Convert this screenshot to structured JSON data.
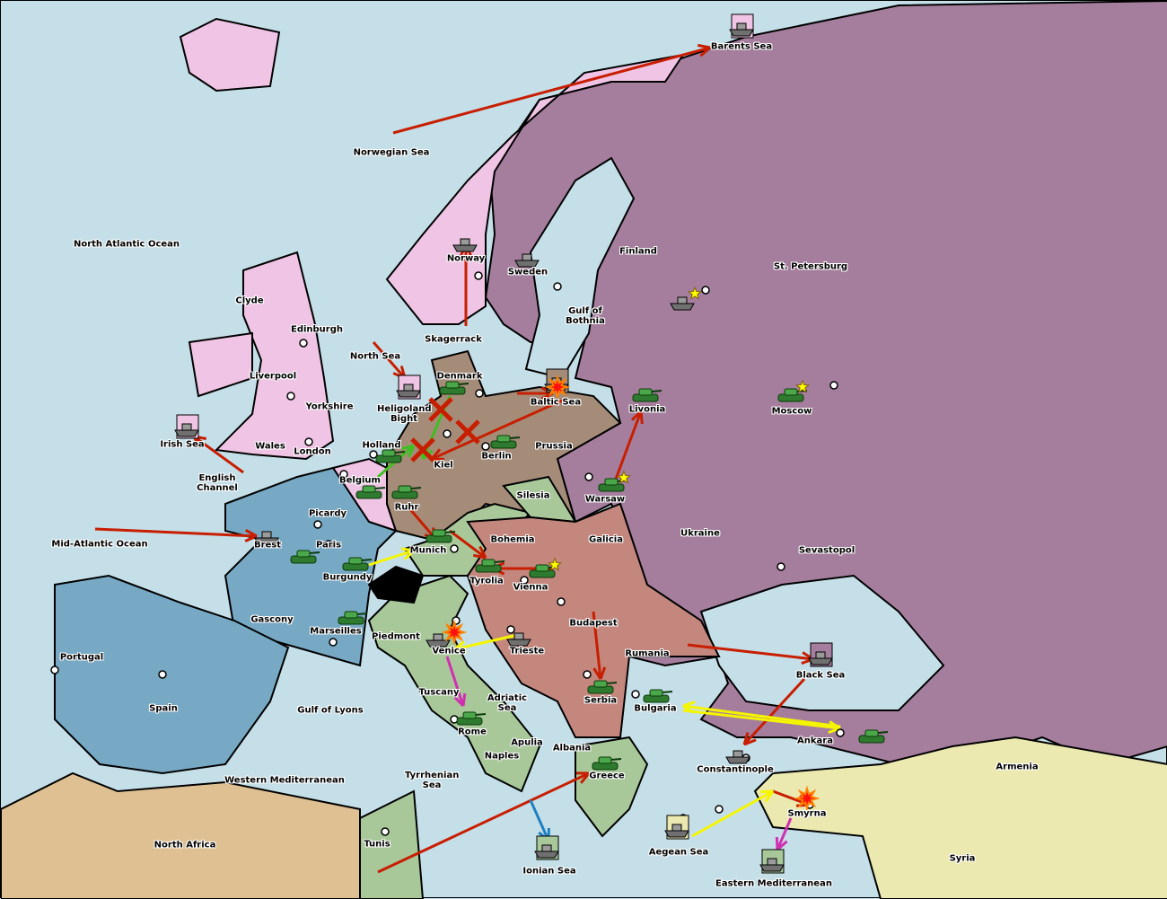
{
  "colors": {
    "sea": "#c5dfe9",
    "russia": "#a57e9e",
    "england": "#f0c4e4",
    "france": "#78a9c4",
    "germany": "#a58c78",
    "austria": "#c4877e",
    "italy": "#a8c89a",
    "turkey": "#ebe9b0",
    "neutral": "#dec092",
    "impassable": "#000000",
    "move_order": "#c81e00",
    "support_order": "#f5f500",
    "convoy_order": "#d030b0",
    "hold_order": "#2080c0",
    "retreat_order": "#40c020"
  },
  "labels": [
    "Barents Sea",
    "Norwegian Sea",
    "North Atlantic Ocean",
    "Norway",
    "Sweden",
    "Finland",
    "St. Petersburg",
    "Clyde",
    "Edinburgh",
    "Gulf of Bothnia",
    "Skagerrack",
    "North Sea",
    "Liverpool",
    "Denmark",
    "Baltic Sea",
    "Yorkshire",
    "Heligoland Bight",
    "Livonia",
    "Moscow",
    "Irish Sea",
    "Wales",
    "Holland",
    "Prussia",
    "London",
    "Kiel",
    "Berlin",
    "English Channel",
    "Belgium",
    "Silesia",
    "Warsaw",
    "Picardy",
    "Ruhr",
    "Ukraine",
    "Mid-Atlantic Ocean",
    "Brest",
    "Paris",
    "Bohemia",
    "Galicia",
    "Sevastopol",
    "Munich",
    "Burgundy",
    "Tyrolia",
    "Vienna",
    "Gascony",
    "Budapest",
    "Marseilles",
    "Piedmont",
    "Portugal",
    "Venice",
    "Trieste",
    "Rumania",
    "Black Sea",
    "Spain",
    "Gulf of Lyons",
    "Tuscany",
    "Adriatic Sea",
    "Serbia",
    "Bulgaria",
    "Rome",
    "Apulia",
    "Ankara",
    "Albania",
    "Naples",
    "Armenia",
    "Constantinople",
    "Western Mediterranean",
    "Tyrrhenian Sea",
    "Greece",
    "Smyrna",
    "North Africa",
    "Tunis",
    "Aegean Sea",
    "Syria",
    "Ionian Sea",
    "Eastern Mediterranean"
  ],
  "units": [
    {
      "type": "army",
      "province": "Denmark"
    },
    {
      "type": "army",
      "province": "Berlin"
    },
    {
      "type": "army",
      "province": "Holland"
    },
    {
      "type": "army",
      "province": "Belgium"
    },
    {
      "type": "army",
      "province": "Ruhr"
    },
    {
      "type": "army",
      "province": "Munich"
    },
    {
      "type": "army",
      "province": "Burgundy"
    },
    {
      "type": "army",
      "province": "Paris"
    },
    {
      "type": "army",
      "province": "Tyrolia"
    },
    {
      "type": "army",
      "province": "Vienna"
    },
    {
      "type": "army",
      "province": "Livonia"
    },
    {
      "type": "army",
      "province": "Warsaw"
    },
    {
      "type": "army",
      "province": "Moscow"
    },
    {
      "type": "army",
      "province": "Marseilles"
    },
    {
      "type": "army",
      "province": "Serbia"
    },
    {
      "type": "army",
      "province": "Bulgaria"
    },
    {
      "type": "army",
      "province": "Rome"
    },
    {
      "type": "army",
      "province": "Greece"
    },
    {
      "type": "army",
      "province": "Ankara"
    },
    {
      "type": "fleet",
      "province": "Barents Sea",
      "owner": "england"
    },
    {
      "type": "fleet",
      "province": "Norway"
    },
    {
      "type": "fleet",
      "province": "Sweden"
    },
    {
      "type": "fleet",
      "province": "St. Petersburg"
    },
    {
      "type": "fleet",
      "province": "Heligoland Bight",
      "owner": "england"
    },
    {
      "type": "fleet",
      "province": "Irish Sea",
      "owner": "england"
    },
    {
      "type": "fleet",
      "province": "Brest"
    },
    {
      "type": "fleet",
      "province": "Venice"
    },
    {
      "type": "fleet",
      "province": "Trieste"
    },
    {
      "type": "fleet",
      "province": "Black Sea",
      "owner": "russia"
    },
    {
      "type": "fleet",
      "province": "Constantinople"
    },
    {
      "type": "fleet",
      "province": "Aegean Sea",
      "owner": "turkey"
    },
    {
      "type": "fleet",
      "province": "Ionian Sea",
      "owner": "italy"
    },
    {
      "type": "fleet",
      "province": "Eastern Mediterranean",
      "owner": "italy"
    },
    {
      "type": "fleet",
      "province": "Baltic Sea",
      "owner": "germany"
    }
  ],
  "markers": {
    "build_star_icon": [
      "St. Petersburg",
      "Warsaw",
      "Moscow",
      "Vienna"
    ],
    "bounce_explosion_icon": [
      "Baltic Sea",
      "Smyrna",
      "Venice"
    ]
  }
}
